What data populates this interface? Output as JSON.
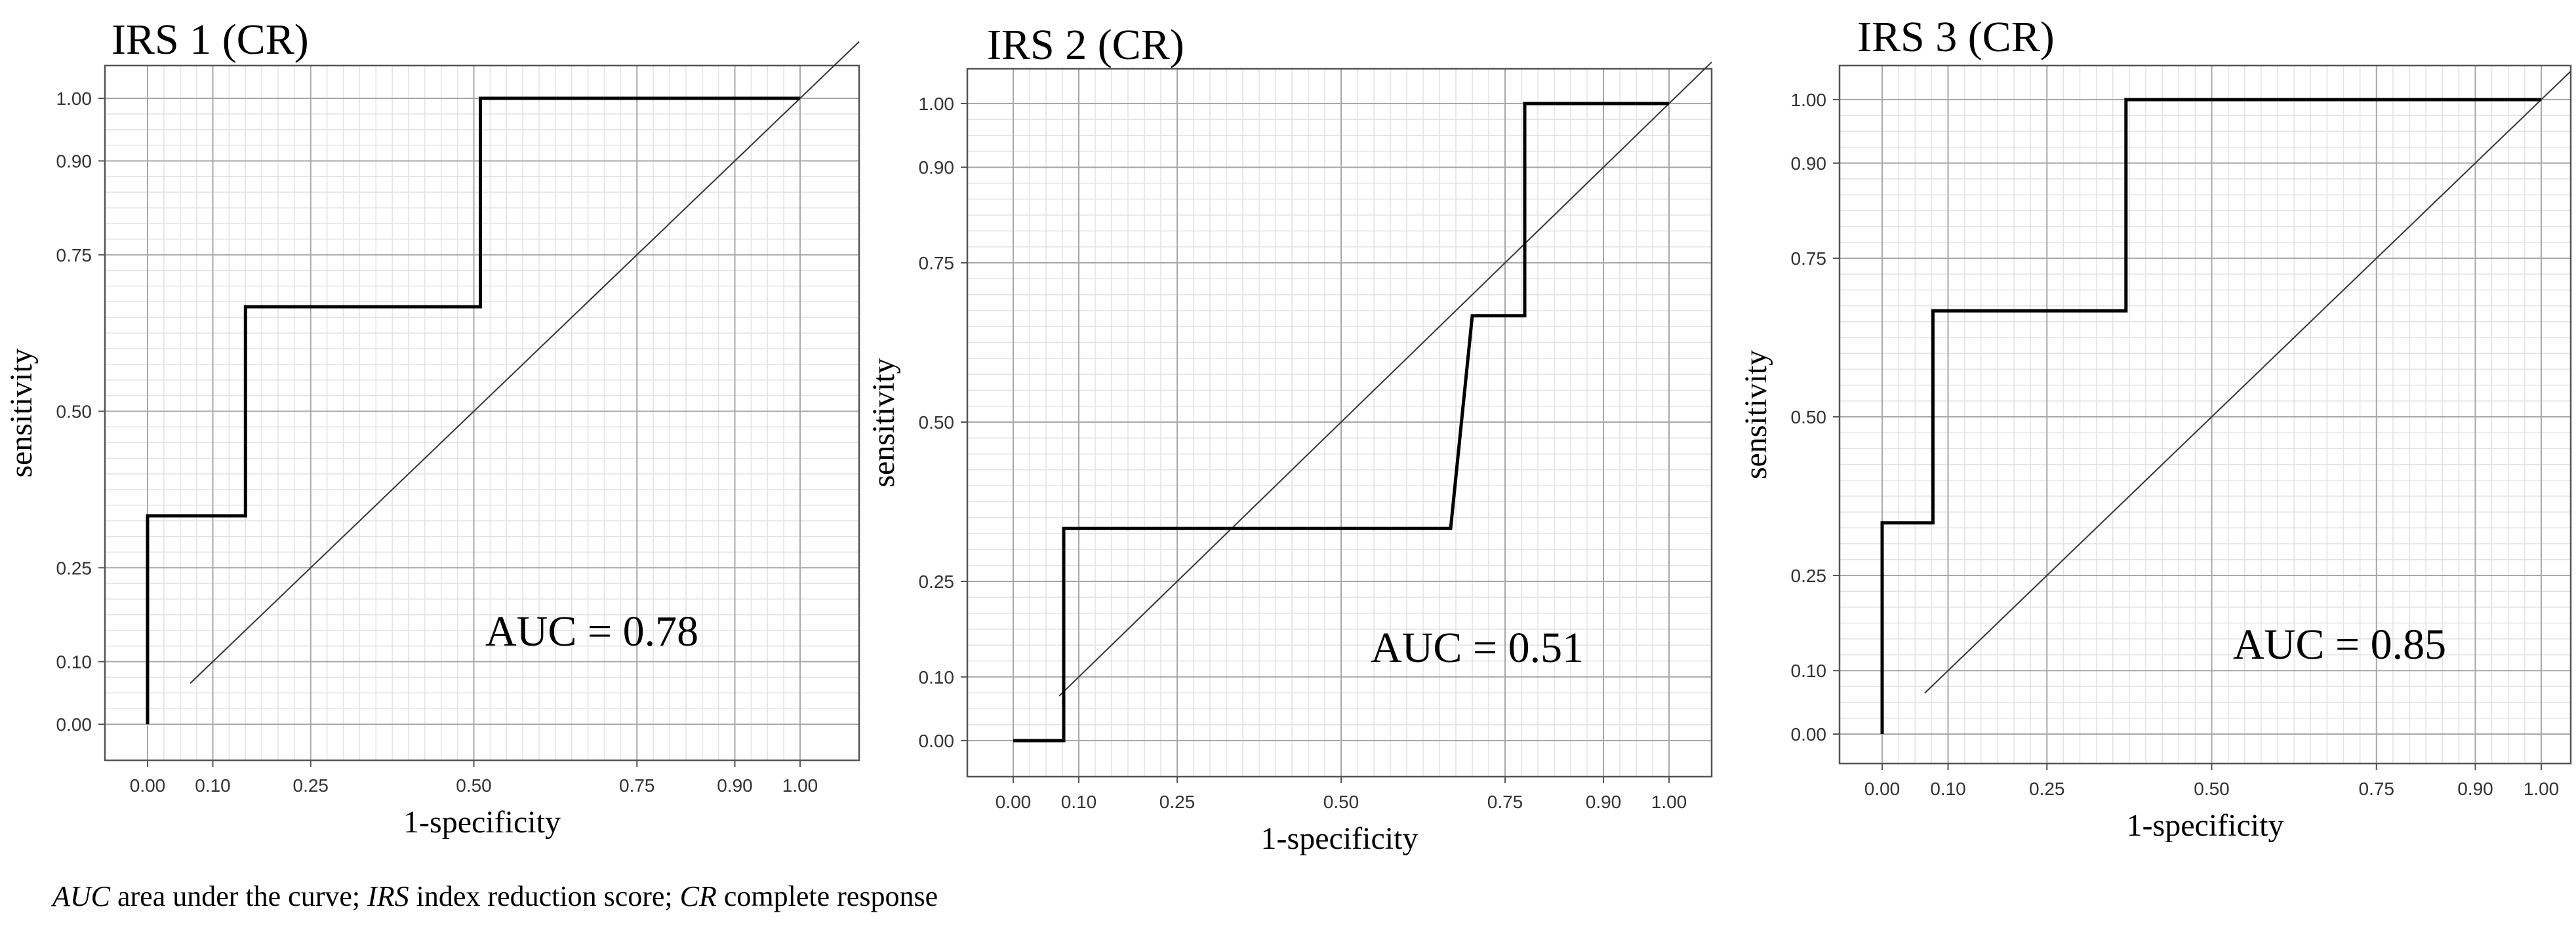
{
  "chart_data": [
    {
      "type": "line",
      "title": "IRS 1 (CR)",
      "xlabel": "1-specificity",
      "ylabel": "sensitivity",
      "xlim": [
        0,
        1
      ],
      "ylim": [
        0,
        1
      ],
      "x_ticks": [
        "0.00",
        "0.10",
        "0.25",
        "0.50",
        "0.75",
        "0.90",
        "1.00"
      ],
      "y_ticks": [
        "0.00",
        "0.10",
        "0.25",
        "0.50",
        "0.75",
        "0.90",
        "1.00"
      ],
      "grid": true,
      "annotation": "AUC = 0.78",
      "series": [
        {
          "x": [
            0,
            0,
            0.15,
            0.15,
            0.51,
            0.51,
            1.0
          ],
          "y": [
            0,
            0.333,
            0.333,
            0.667,
            0.667,
            1.0,
            1.0
          ]
        }
      ],
      "reference_line": [
        [
          0,
          0
        ],
        [
          1,
          1
        ]
      ]
    },
    {
      "type": "line",
      "title": "IRS 2 (CR)",
      "xlabel": "1-specificity",
      "ylabel": "sensitivity",
      "xlim": [
        0,
        1
      ],
      "ylim": [
        0,
        1
      ],
      "x_ticks": [
        "0.00",
        "0.10",
        "0.25",
        "0.50",
        "0.75",
        "0.90",
        "1.00"
      ],
      "y_ticks": [
        "0.00",
        "0.10",
        "0.25",
        "0.50",
        "0.75",
        "0.90",
        "1.00"
      ],
      "grid": true,
      "annotation": "AUC = 0.51",
      "series": [
        {
          "x": [
            0,
            0.077,
            0.077,
            0.667,
            0.7,
            0.78,
            0.78,
            1.0
          ],
          "y": [
            0,
            0,
            0.333,
            0.333,
            0.667,
            0.667,
            1.0,
            1.0
          ]
        }
      ],
      "reference_line": [
        [
          0,
          0
        ],
        [
          1,
          1
        ]
      ]
    },
    {
      "type": "line",
      "title": "IRS 3 (CR)",
      "xlabel": "1-specificity",
      "ylabel": "sensitivity",
      "xlim": [
        0,
        1
      ],
      "ylim": [
        0,
        1
      ],
      "x_ticks": [
        "0.00",
        "0.10",
        "0.25",
        "0.50",
        "0.75",
        "0.90",
        "1.00"
      ],
      "y_ticks": [
        "0.00",
        "0.10",
        "0.25",
        "0.50",
        "0.75",
        "0.90",
        "1.00"
      ],
      "grid": true,
      "annotation": "AUC = 0.85",
      "series": [
        {
          "x": [
            0,
            0,
            0.077,
            0.077,
            0.37,
            0.37,
            1.0
          ],
          "y": [
            0,
            0.333,
            0.333,
            0.667,
            0.667,
            1.0,
            1.0
          ]
        }
      ],
      "reference_line": [
        [
          0,
          0
        ],
        [
          1,
          1
        ]
      ]
    }
  ],
  "caption": {
    "auc_abbr": "AUC",
    "auc_def": " area under the curve; ",
    "irs_abbr": "IRS",
    "irs_def": " index reduction score; ",
    "cr_abbr": "CR",
    "cr_def": " complete response"
  }
}
